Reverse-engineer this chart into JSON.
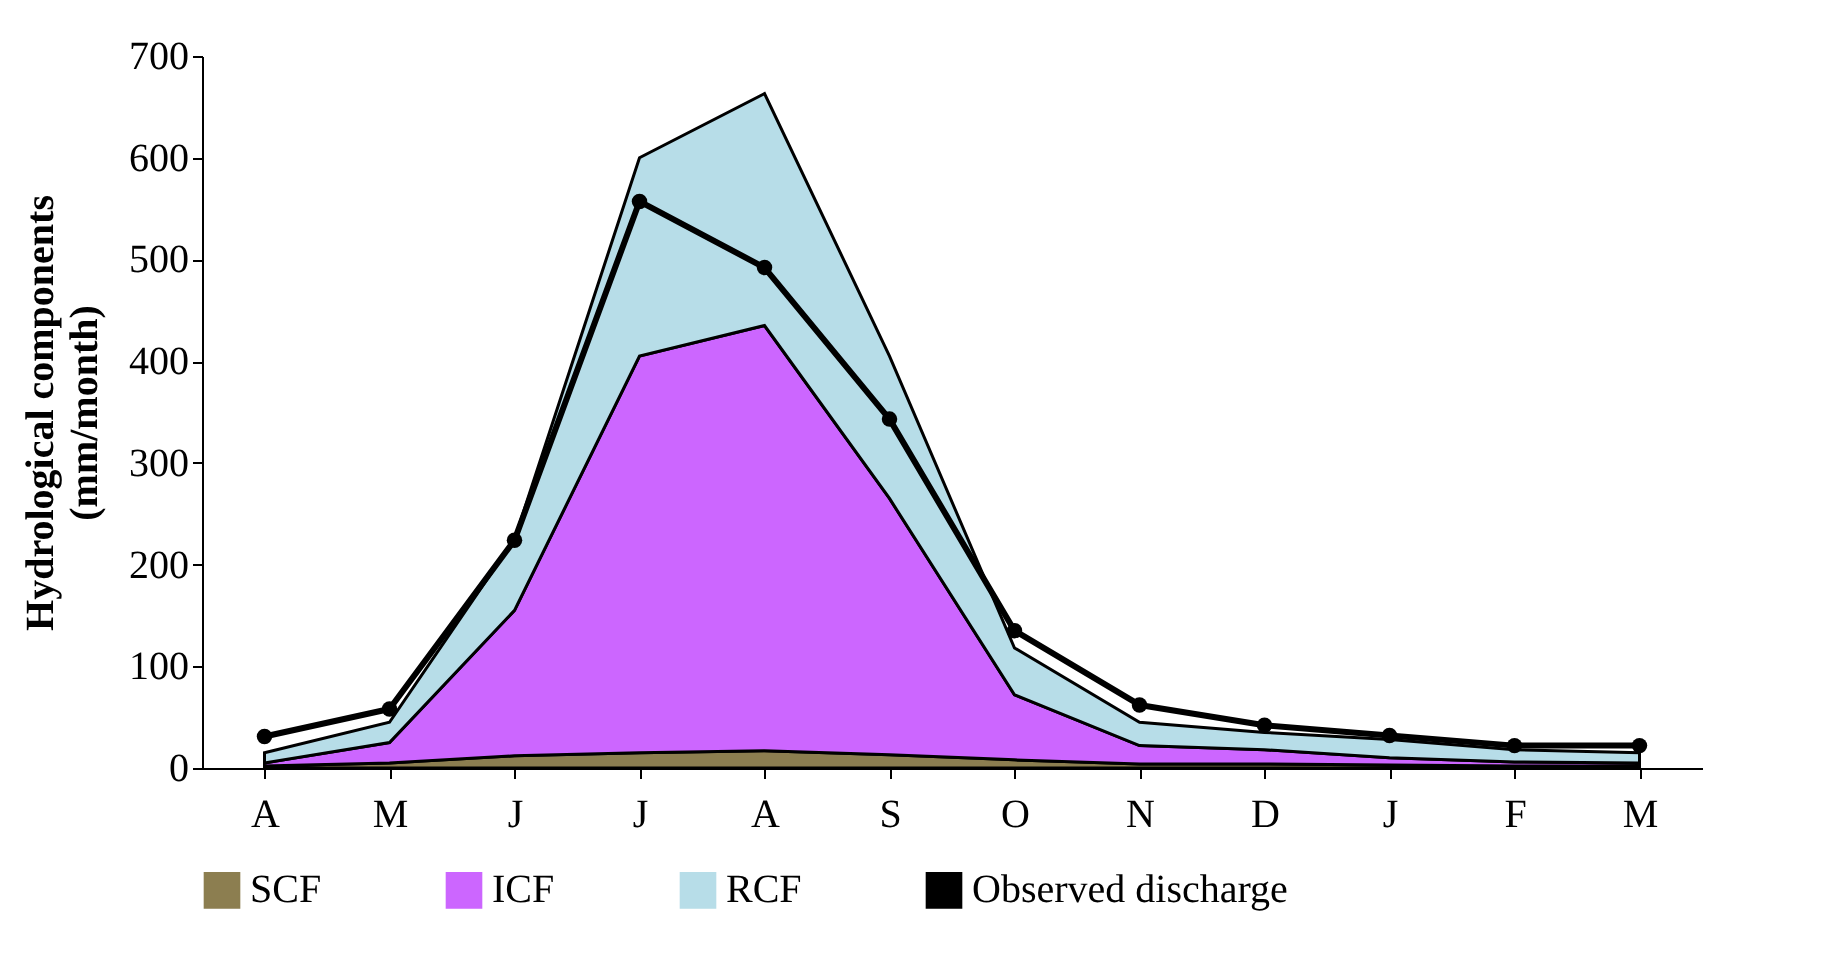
{
  "chart_data": {
    "type": "area",
    "stacked": true,
    "ylabel": "Hydrological components\n(mm/month)",
    "categories": [
      "A",
      "M",
      "J",
      "J",
      "A",
      "S",
      "O",
      "N",
      "D",
      "J",
      "F",
      "M"
    ],
    "ylim": [
      0,
      700
    ],
    "yticks": [
      0,
      100,
      200,
      300,
      400,
      500,
      600,
      700
    ],
    "grid": false,
    "legend": "bottom",
    "series": [
      {
        "name": "SCF",
        "color": "#8c7e50",
        "values": [
          2,
          5,
          12,
          15,
          17,
          13,
          8,
          4,
          4,
          3,
          2,
          2
        ]
      },
      {
        "name": "ICF",
        "color": "#cc66ff",
        "values": [
          3,
          20,
          143,
          390,
          418,
          252,
          64,
          18,
          14,
          7,
          4,
          3
        ]
      },
      {
        "name": "RCF",
        "color": "#b7dde8",
        "values": [
          10,
          20,
          70,
          195,
          228,
          140,
          46,
          23,
          17,
          18,
          12,
          10
        ]
      },
      {
        "name": "Observed discharge",
        "type": "line",
        "color": "#000000",
        "marker": "circle",
        "values": [
          31,
          58,
          224,
          557,
          492,
          343,
          135,
          62,
          42,
          32,
          22,
          22
        ]
      }
    ]
  }
}
